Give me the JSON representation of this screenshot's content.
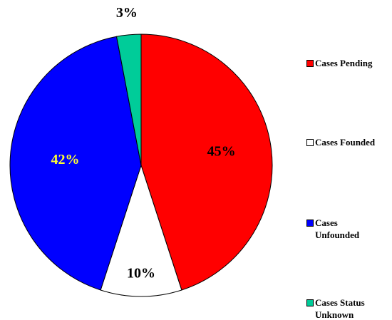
{
  "chart_data": {
    "type": "pie",
    "categories": [
      "Cases Pending",
      "Cases Founded",
      "Cases Unfounded",
      "Cases Status Unknown"
    ],
    "values": [
      45,
      10,
      42,
      3
    ],
    "value_labels": [
      "45%",
      "10%",
      "42%",
      "3%"
    ],
    "colors": [
      "#ff0000",
      "#ffffff",
      "#0000ff",
      "#00cc99"
    ],
    "label_colors": [
      "#000000",
      "#000000",
      "#ffff33",
      "#000000"
    ],
    "legend": "right"
  }
}
